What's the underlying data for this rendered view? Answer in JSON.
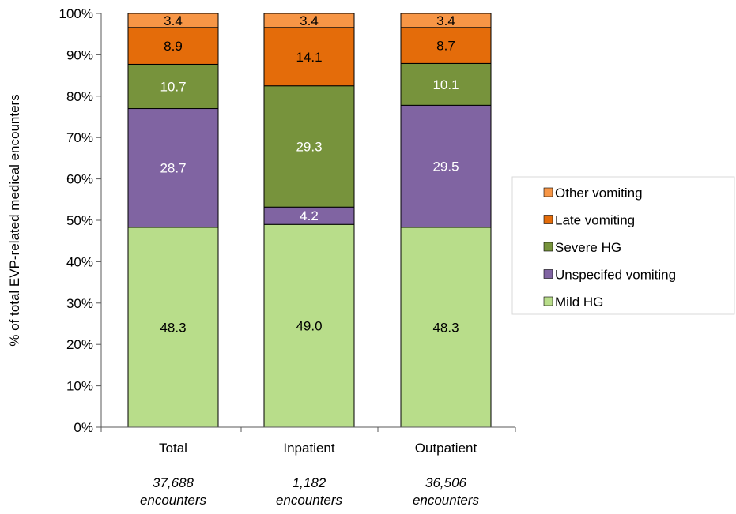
{
  "chart_data": {
    "type": "bar",
    "stacked": true,
    "ylabel": "% of  total EVP-related medical encounters",
    "ylim": [
      0,
      100
    ],
    "yticks": [
      "0%",
      "10%",
      "20%",
      "30%",
      "40%",
      "50%",
      "60%",
      "70%",
      "80%",
      "90%",
      "100%"
    ],
    "categories": [
      "Total",
      "Inpatient",
      "Outpatient"
    ],
    "encounter_counts": [
      [
        "37,688",
        "encounters"
      ],
      [
        "1,182",
        "encounters"
      ],
      [
        "36,506",
        "encounters"
      ]
    ],
    "legend_position": "right",
    "series": [
      {
        "name": "Mild HG",
        "color": "#B8DD8A",
        "label_color": "#000000",
        "values": [
          48.3,
          49.0,
          48.3
        ],
        "labels": [
          "48.3",
          "49.0",
          "48.3"
        ]
      },
      {
        "name": "Unspecifed vomiting",
        "color": "#8064A2",
        "label_color": "#ffffff",
        "values": [
          28.7,
          4.2,
          29.5
        ],
        "labels": [
          "28.7",
          "4.2",
          "29.5"
        ]
      },
      {
        "name": "Severe HG",
        "color": "#77933C",
        "label_color": "#ffffff",
        "values": [
          10.7,
          29.3,
          10.1
        ],
        "labels": [
          "10.7",
          "29.3",
          "10.1"
        ]
      },
      {
        "name": "Late vomiting",
        "color": "#E46C0A",
        "label_color": "#000000",
        "values": [
          8.9,
          14.1,
          8.7
        ],
        "labels": [
          "8.9",
          "14.1",
          "8.7"
        ]
      },
      {
        "name": "Other vomiting",
        "color": "#F79646",
        "label_color": "#000000",
        "values": [
          3.4,
          3.4,
          3.4
        ],
        "labels": [
          "3.4",
          "3.4",
          "3.4"
        ]
      }
    ]
  }
}
